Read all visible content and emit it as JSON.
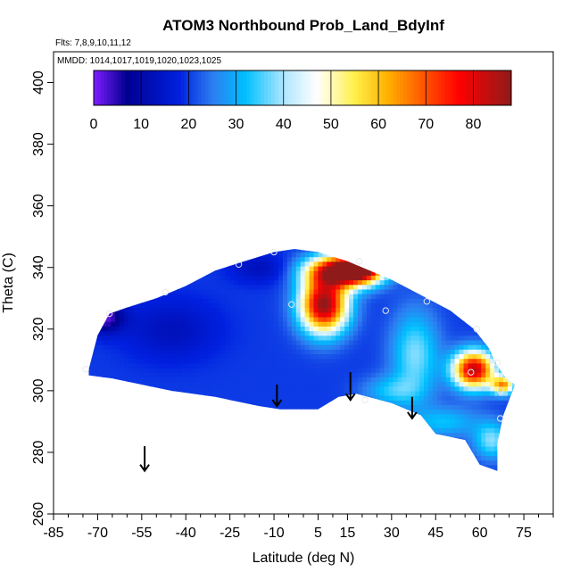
{
  "chart_data": {
    "type": "heatmap",
    "title": "ATOM3 Northbound Prob_Land_BdyInf",
    "annotations": [
      "Flts: 7,8,9,10,11,12",
      "MMDD: 1014,1017,1019,1020,1023,1025"
    ],
    "xlabel": "Latitude (deg N)",
    "ylabel": "Theta (C)",
    "xlim": [
      -85,
      85
    ],
    "ylim": [
      260,
      410
    ],
    "x_tick_labels": [
      "-85",
      "-70",
      "-55",
      "-40",
      "-25",
      "-10",
      "5",
      "15",
      "30",
      "45",
      "60",
      "75"
    ],
    "x_tick_values": [
      -85,
      -70,
      -55,
      -40,
      -25,
      -10,
      5,
      15,
      30,
      45,
      60,
      75
    ],
    "y_tick_labels": [
      "260",
      "280",
      "300",
      "320",
      "340",
      "360",
      "380",
      "400"
    ],
    "y_tick_values": [
      260,
      280,
      300,
      320,
      340,
      360,
      380,
      400
    ],
    "colorbar": {
      "range": [
        0,
        88
      ],
      "tick_labels": [
        "0",
        "10",
        "20",
        "30",
        "40",
        "50",
        "60",
        "70",
        "80"
      ],
      "tick_values": [
        0,
        10,
        20,
        30,
        40,
        50,
        60,
        70,
        80
      ],
      "stops": [
        {
          "v": 0,
          "color": "#7f1cff"
        },
        {
          "v": 7,
          "color": "#00008f"
        },
        {
          "v": 18,
          "color": "#0020e0"
        },
        {
          "v": 25,
          "color": "#2d7df0"
        },
        {
          "v": 32,
          "color": "#00c0ff"
        },
        {
          "v": 40,
          "color": "#aee6ff"
        },
        {
          "v": 47,
          "color": "#ffffff"
        },
        {
          "v": 55,
          "color": "#fff04a"
        },
        {
          "v": 62,
          "color": "#ffb000"
        },
        {
          "v": 70,
          "color": "#ff5000"
        },
        {
          "v": 77,
          "color": "#ff0000"
        },
        {
          "v": 88,
          "color": "#8f1a1a"
        }
      ]
    },
    "outline": {
      "upper": [
        [
          -73,
          307
        ],
        [
          -70,
          318
        ],
        [
          -66,
          325
        ],
        [
          -60,
          327
        ],
        [
          -50,
          330
        ],
        [
          -40,
          334
        ],
        [
          -30,
          339
        ],
        [
          -20,
          342
        ],
        [
          -10,
          345
        ],
        [
          -3,
          346
        ],
        [
          5,
          345
        ],
        [
          15,
          342
        ],
        [
          30,
          336
        ],
        [
          40,
          331
        ],
        [
          50,
          326
        ],
        [
          58,
          320
        ],
        [
          63,
          314
        ],
        [
          66,
          308
        ],
        [
          69,
          304
        ],
        [
          72,
          302
        ]
      ],
      "lower": [
        [
          72,
          302
        ],
        [
          70,
          297
        ],
        [
          68,
          292
        ],
        [
          66,
          283
        ],
        [
          66,
          274
        ],
        [
          60,
          276
        ],
        [
          55,
          284
        ],
        [
          45,
          286
        ],
        [
          40,
          292
        ],
        [
          30,
          296
        ],
        [
          18,
          299
        ],
        [
          12,
          298
        ],
        [
          5,
          294
        ],
        [
          -8,
          294
        ],
        [
          -15,
          295
        ],
        [
          -30,
          298
        ],
        [
          -45,
          300
        ],
        [
          -55,
          302
        ],
        [
          -65,
          304
        ],
        [
          -73,
          305
        ]
      ]
    },
    "field": {
      "background": 20,
      "features": [
        {
          "x": 7,
          "y": 328,
          "sx": 8,
          "sy": 9,
          "value": 68
        },
        {
          "x": 12,
          "y": 339,
          "sx": 11,
          "sy": 5,
          "value": 58
        },
        {
          "x": 20,
          "y": 340,
          "sx": 8,
          "sy": 5,
          "value": 54
        },
        {
          "x": 58,
          "y": 307,
          "sx": 7,
          "sy": 6,
          "value": 64
        },
        {
          "x": 68,
          "y": 302,
          "sx": 4,
          "sy": 3,
          "value": 42
        },
        {
          "x": -68,
          "y": 324,
          "sx": 7,
          "sy": 5,
          "value": -18
        },
        {
          "x": -45,
          "y": 320,
          "sx": 16,
          "sy": 10,
          "value": -7
        },
        {
          "x": -15,
          "y": 340,
          "sx": 10,
          "sy": 5,
          "value": -7
        },
        {
          "x": 38,
          "y": 312,
          "sx": 8,
          "sy": 14,
          "value": 18
        },
        {
          "x": 48,
          "y": 290,
          "sx": 12,
          "sy": 5,
          "value": 12
        },
        {
          "x": 64,
          "y": 284,
          "sx": 6,
          "sy": 6,
          "value": 18
        },
        {
          "x": 30,
          "y": 300,
          "sx": 10,
          "sy": 5,
          "value": 12
        }
      ]
    },
    "markers": [
      {
        "x": -66,
        "y": 325
      },
      {
        "x": -47,
        "y": 332
      },
      {
        "x": -22,
        "y": 341
      },
      {
        "x": -10,
        "y": 345
      },
      {
        "x": -4,
        "y": 328
      },
      {
        "x": 19,
        "y": 342
      },
      {
        "x": 21,
        "y": 297
      },
      {
        "x": 28,
        "y": 326
      },
      {
        "x": 42,
        "y": 329
      },
      {
        "x": 57,
        "y": 306
      },
      {
        "x": 59,
        "y": 320
      },
      {
        "x": 66,
        "y": 309
      },
      {
        "x": 67,
        "y": 300
      },
      {
        "x": 67,
        "y": 291
      },
      {
        "x": -74,
        "y": 307
      }
    ],
    "arrows": [
      {
        "x": -54,
        "y_top": 282,
        "y_bottom": 274
      },
      {
        "x": -9,
        "y_top": 302,
        "y_bottom": 295
      },
      {
        "x": 16,
        "y_top": 306,
        "y_bottom": 297
      },
      {
        "x": 37,
        "y_top": 298,
        "y_bottom": 291
      }
    ],
    "grid": false
  }
}
